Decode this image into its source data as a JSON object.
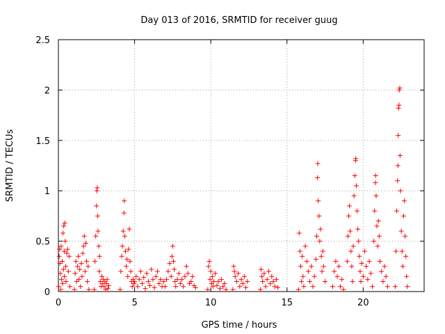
{
  "chart_data": {
    "type": "scatter",
    "title": "Day 013 of 2016, SRMTID for receiver guug",
    "xlabel": "GPS time / hours",
    "ylabel": "SRMTID / TECUs",
    "xlim": [
      0,
      24
    ],
    "ylim": [
      0,
      2.5
    ],
    "xticks": [
      0,
      5,
      10,
      15,
      20
    ],
    "xtick_labels": [
      "0",
      "5",
      "10",
      "15",
      "20"
    ],
    "yticks": [
      0,
      0.5,
      1,
      1.5,
      2,
      2.5
    ],
    "ytick_labels": [
      "0",
      "0.5",
      "1",
      "1.5",
      "2",
      "2.5"
    ],
    "grid": true,
    "marker": "+",
    "marker_color": "#ff0000",
    "series": [
      {
        "values": [
          [
            0.02,
            0.05
          ],
          [
            0.05,
            0.35
          ],
          [
            0.08,
            0.42
          ],
          [
            0.1,
            0.28
          ],
          [
            0.13,
            0.18
          ],
          [
            0.15,
            0.02
          ],
          [
            0.18,
            0.45
          ],
          [
            0.2,
            0.12
          ],
          [
            0.25,
            0.3
          ],
          [
            0.28,
            0.08
          ],
          [
            0.3,
            0.58
          ],
          [
            0.33,
            0.22
          ],
          [
            0.35,
            0.65
          ],
          [
            0.38,
            0.4
          ],
          [
            0.4,
            0.15
          ],
          [
            0.42,
            0.68
          ],
          [
            0.45,
            0.5
          ],
          [
            0.48,
            0.25
          ],
          [
            0.5,
            0.1
          ],
          [
            0.55,
            0.38
          ],
          [
            0.6,
            0.42
          ],
          [
            0.65,
            0.2
          ],
          [
            0.7,
            0.35
          ],
          [
            0.75,
            0.05
          ],
          [
            1.05,
            0.02
          ],
          [
            1.1,
            0.18
          ],
          [
            1.15,
            0.3
          ],
          [
            1.2,
            0.1
          ],
          [
            1.25,
            0.25
          ],
          [
            1.3,
            0.35
          ],
          [
            1.35,
            0.12
          ],
          [
            1.4,
            0.22
          ],
          [
            1.45,
            0.05
          ],
          [
            1.5,
            0.28
          ],
          [
            1.55,
            0.15
          ],
          [
            1.6,
            0.38
          ],
          [
            1.65,
            0.45
          ],
          [
            1.7,
            0.55
          ],
          [
            1.75,
            0.2
          ],
          [
            1.8,
            0.48
          ],
          [
            1.85,
            0.3
          ],
          [
            1.9,
            0.1
          ],
          [
            1.95,
            0.25
          ],
          [
            2.0,
            0.02
          ],
          [
            2.35,
            0.02
          ],
          [
            2.4,
            0.3
          ],
          [
            2.45,
            0.55
          ],
          [
            2.5,
            0.85
          ],
          [
            2.52,
            1.0
          ],
          [
            2.55,
            1.03
          ],
          [
            2.58,
            0.75
          ],
          [
            2.6,
            0.6
          ],
          [
            2.65,
            0.45
          ],
          [
            2.68,
            0.2
          ],
          [
            2.7,
            0.35
          ],
          [
            2.75,
            0.1
          ],
          [
            2.8,
            0.05
          ],
          [
            2.85,
            0.15
          ],
          [
            2.9,
            0.08
          ],
          [
            2.95,
            0.12
          ],
          [
            3.0,
            0.05
          ],
          [
            3.05,
            0.1
          ],
          [
            3.1,
            0.02
          ],
          [
            3.15,
            0.08
          ],
          [
            3.2,
            0.12
          ],
          [
            3.25,
            0.03
          ],
          [
            3.3,
            0.06
          ],
          [
            4.05,
            0.02
          ],
          [
            4.1,
            0.2
          ],
          [
            4.15,
            0.35
          ],
          [
            4.2,
            0.45
          ],
          [
            4.25,
            0.6
          ],
          [
            4.3,
            0.78
          ],
          [
            4.32,
            0.9
          ],
          [
            4.35,
            0.55
          ],
          [
            4.4,
            0.4
          ],
          [
            4.45,
            0.25
          ],
          [
            4.5,
            0.32
          ],
          [
            4.55,
            0.15
          ],
          [
            4.6,
            0.42
          ],
          [
            4.65,
            0.62
          ],
          [
            4.7,
            0.3
          ],
          [
            4.75,
            0.2
          ],
          [
            4.8,
            0.1
          ],
          [
            4.85,
            0.05
          ],
          [
            4.9,
            0.12
          ],
          [
            4.95,
            0.08
          ],
          [
            5.0,
            0.1
          ],
          [
            5.1,
            0.15
          ],
          [
            5.2,
            0.05
          ],
          [
            5.3,
            0.12
          ],
          [
            5.4,
            0.2
          ],
          [
            5.5,
            0.08
          ],
          [
            5.6,
            0.14
          ],
          [
            5.7,
            0.03
          ],
          [
            5.8,
            0.18
          ],
          [
            5.9,
            0.1
          ],
          [
            6.0,
            0.06
          ],
          [
            6.1,
            0.22
          ],
          [
            6.2,
            0.12
          ],
          [
            6.3,
            0.04
          ],
          [
            6.4,
            0.15
          ],
          [
            6.5,
            0.2
          ],
          [
            6.6,
            0.08
          ],
          [
            6.7,
            0.12
          ],
          [
            6.8,
            0.05
          ],
          [
            6.9,
            0.1
          ],
          [
            7.0,
            0.05
          ],
          [
            7.1,
            0.12
          ],
          [
            7.2,
            0.2
          ],
          [
            7.3,
            0.28
          ],
          [
            7.4,
            0.15
          ],
          [
            7.45,
            0.35
          ],
          [
            7.5,
            0.45
          ],
          [
            7.55,
            0.3
          ],
          [
            7.6,
            0.22
          ],
          [
            7.65,
            0.1
          ],
          [
            7.7,
            0.05
          ],
          [
            7.8,
            0.12
          ],
          [
            7.9,
            0.18
          ],
          [
            8.0,
            0.08
          ],
          [
            8.1,
            0.12
          ],
          [
            8.2,
            0.05
          ],
          [
            8.3,
            0.15
          ],
          [
            8.4,
            0.25
          ],
          [
            8.5,
            0.18
          ],
          [
            8.6,
            0.08
          ],
          [
            8.7,
            0.1
          ],
          [
            8.8,
            0.15
          ],
          [
            8.9,
            0.06
          ],
          [
            9.0,
            0.04
          ],
          [
            9.8,
            0.02
          ],
          [
            9.85,
            0.25
          ],
          [
            9.9,
            0.3
          ],
          [
            9.95,
            0.12
          ],
          [
            10.0,
            0.2
          ],
          [
            10.05,
            0.08
          ],
          [
            10.1,
            0.15
          ],
          [
            10.15,
            0.05
          ],
          [
            10.2,
            0.1
          ],
          [
            10.3,
            0.18
          ],
          [
            10.4,
            0.06
          ],
          [
            10.5,
            0.1
          ],
          [
            10.6,
            0.03
          ],
          [
            10.7,
            0.12
          ],
          [
            10.8,
            0.05
          ],
          [
            10.9,
            0.08
          ],
          [
            11.0,
            0.02
          ],
          [
            11.45,
            0.02
          ],
          [
            11.5,
            0.25
          ],
          [
            11.55,
            0.2
          ],
          [
            11.6,
            0.15
          ],
          [
            11.7,
            0.1
          ],
          [
            11.8,
            0.18
          ],
          [
            11.9,
            0.05
          ],
          [
            12.0,
            0.12
          ],
          [
            12.1,
            0.08
          ],
          [
            12.2,
            0.15
          ],
          [
            12.3,
            0.04
          ],
          [
            12.4,
            0.1
          ],
          [
            13.25,
            0.02
          ],
          [
            13.3,
            0.22
          ],
          [
            13.35,
            0.15
          ],
          [
            13.4,
            0.1
          ],
          [
            13.5,
            0.18
          ],
          [
            13.6,
            0.05
          ],
          [
            13.7,
            0.12
          ],
          [
            13.8,
            0.2
          ],
          [
            13.9,
            0.08
          ],
          [
            14.0,
            0.15
          ],
          [
            14.1,
            0.1
          ],
          [
            14.2,
            0.05
          ],
          [
            14.3,
            0.12
          ],
          [
            14.4,
            0.04
          ],
          [
            15.75,
            0.02
          ],
          [
            15.8,
            0.58
          ],
          [
            15.85,
            0.4
          ],
          [
            15.9,
            0.25
          ],
          [
            15.95,
            0.1
          ],
          [
            16.0,
            0.35
          ],
          [
            16.05,
            0.15
          ],
          [
            16.1,
            0.05
          ],
          [
            16.2,
            0.45
          ],
          [
            16.3,
            0.3
          ],
          [
            16.4,
            0.2
          ],
          [
            16.5,
            0.1
          ],
          [
            16.6,
            0.25
          ],
          [
            16.7,
            0.05
          ],
          [
            16.8,
            0.15
          ],
          [
            16.9,
            0.32
          ],
          [
            16.95,
            0.55
          ],
          [
            17.0,
            1.13
          ],
          [
            17.02,
            1.27
          ],
          [
            17.05,
            0.9
          ],
          [
            17.1,
            0.75
          ],
          [
            17.15,
            0.5
          ],
          [
            17.2,
            0.62
          ],
          [
            17.25,
            0.35
          ],
          [
            17.3,
            0.2
          ],
          [
            17.35,
            0.4
          ],
          [
            17.4,
            0.25
          ],
          [
            17.5,
            0.1
          ],
          [
            18.0,
            0.05
          ],
          [
            18.1,
            0.2
          ],
          [
            18.2,
            0.3
          ],
          [
            18.3,
            0.15
          ],
          [
            18.4,
            0.25
          ],
          [
            18.5,
            0.05
          ],
          [
            18.6,
            0.12
          ],
          [
            18.7,
            0.02
          ],
          [
            18.95,
            0.3
          ],
          [
            19.0,
            0.55
          ],
          [
            19.05,
            0.75
          ],
          [
            19.1,
            0.85
          ],
          [
            19.15,
            0.6
          ],
          [
            19.2,
            0.4
          ],
          [
            19.25,
            0.25
          ],
          [
            19.3,
            0.1
          ],
          [
            19.35,
            0.45
          ],
          [
            19.4,
            0.95
          ],
          [
            19.45,
            1.15
          ],
          [
            19.5,
            1.3
          ],
          [
            19.52,
            1.32
          ],
          [
            19.55,
            1.05
          ],
          [
            19.6,
            0.8
          ],
          [
            19.65,
            0.62
          ],
          [
            19.7,
            0.5
          ],
          [
            19.75,
            0.35
          ],
          [
            19.8,
            0.2
          ],
          [
            19.85,
            0.1
          ],
          [
            19.9,
            0.28
          ],
          [
            20.0,
            0.15
          ],
          [
            20.1,
            0.4
          ],
          [
            20.2,
            0.25
          ],
          [
            20.3,
            0.12
          ],
          [
            20.4,
            0.3
          ],
          [
            20.5,
            0.18
          ],
          [
            20.6,
            0.05
          ],
          [
            20.7,
            0.5
          ],
          [
            20.75,
            0.8
          ],
          [
            20.8,
            1.08
          ],
          [
            20.82,
            1.15
          ],
          [
            20.85,
            0.95
          ],
          [
            20.9,
            0.65
          ],
          [
            20.95,
            0.45
          ],
          [
            21.0,
            0.7
          ],
          [
            21.05,
            0.55
          ],
          [
            21.1,
            0.3
          ],
          [
            21.2,
            0.2
          ],
          [
            21.3,
            0.1
          ],
          [
            21.4,
            0.25
          ],
          [
            21.5,
            0.15
          ],
          [
            21.6,
            0.05
          ],
          [
            22.1,
            0.05
          ],
          [
            22.15,
            0.4
          ],
          [
            22.2,
            0.8
          ],
          [
            22.25,
            1.1
          ],
          [
            22.28,
            1.25
          ],
          [
            22.3,
            1.55
          ],
          [
            22.32,
            1.82
          ],
          [
            22.35,
            1.85
          ],
          [
            22.37,
            2.0
          ],
          [
            22.4,
            2.02
          ],
          [
            22.42,
            1.35
          ],
          [
            22.45,
            1.0
          ],
          [
            22.5,
            0.6
          ],
          [
            22.55,
            0.4
          ],
          [
            22.6,
            0.25
          ],
          [
            22.65,
            0.75
          ],
          [
            22.7,
            0.9
          ],
          [
            22.75,
            0.55
          ],
          [
            22.8,
            0.35
          ],
          [
            22.85,
            0.15
          ],
          [
            22.9,
            0.05
          ]
        ]
      }
    ]
  }
}
